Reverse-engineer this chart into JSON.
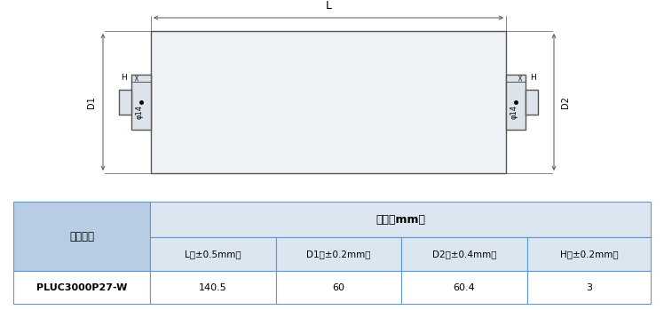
{
  "table_header_bg": "#b8cce4",
  "table_subheader_bg": "#dce6f1",
  "table_data_bg": "#ffffff",
  "table_border_color": "#5b9bd5",
  "header_row1_col0": "产品描述",
  "header_row1_col1": "尺寸（mm）",
  "header_row2": [
    "L（±0.5mm）",
    "D1（±0.2mm）",
    "D2（±0.4mm）",
    "H（±0.2mm）"
  ],
  "data_row": [
    "PLUC3000P27-W",
    "140.5",
    "60",
    "60.4",
    "3"
  ],
  "drawing_color": "#555555",
  "dim_line_color": "#555555",
  "body_fill": "#eef2f7",
  "terminal_fill": "#dde3ea",
  "label_L": "L",
  "label_D1": "D1",
  "label_D2": "D2",
  "label_H": "H",
  "label_phi14": "φ14"
}
